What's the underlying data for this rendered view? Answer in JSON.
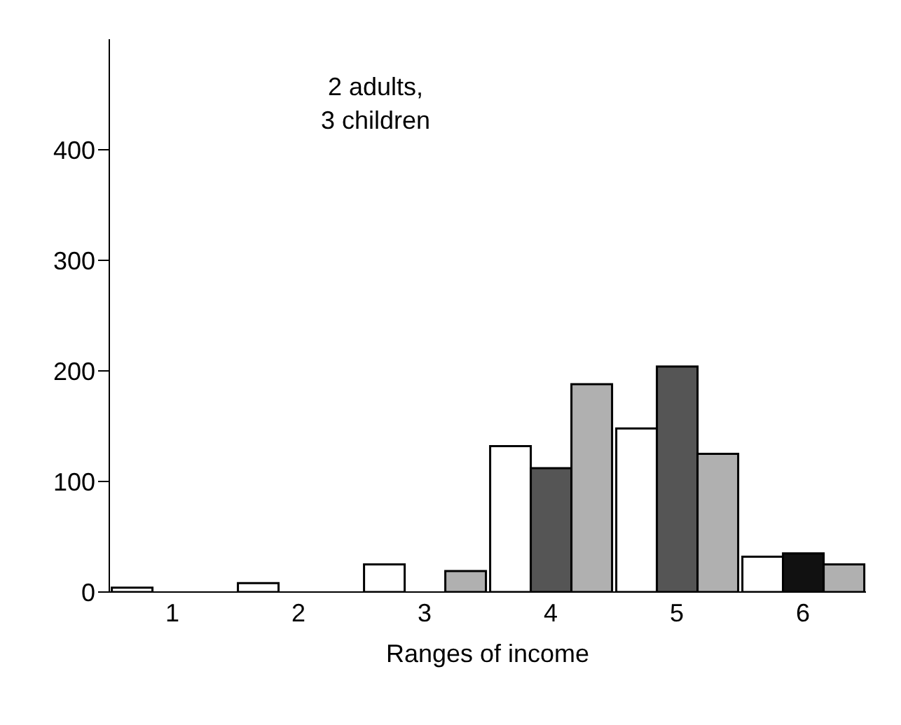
{
  "chart_data": {
    "type": "bar",
    "xlabel": "Ranges of income",
    "annotations": [
      "2 adults,\n3 children"
    ],
    "categories": [
      "1",
      "2",
      "3",
      "4",
      "5",
      "6"
    ],
    "series": [
      {
        "color": "#ffffff",
        "values": [
          4,
          8,
          25,
          132,
          148,
          32
        ]
      },
      {
        "color": "#555555",
        "colors": [
          "#555555",
          "#555555",
          "#555555",
          "#555555",
          "#555555",
          "#111111"
        ],
        "values": [
          null,
          null,
          null,
          112,
          204,
          35
        ]
      },
      {
        "color": "#b0b0b0",
        "values": [
          null,
          null,
          19,
          188,
          125,
          25
        ]
      }
    ],
    "ylim": [
      0,
      500
    ],
    "yticks": [
      0,
      100,
      200,
      300,
      400
    ],
    "grid": false,
    "legend": false
  }
}
